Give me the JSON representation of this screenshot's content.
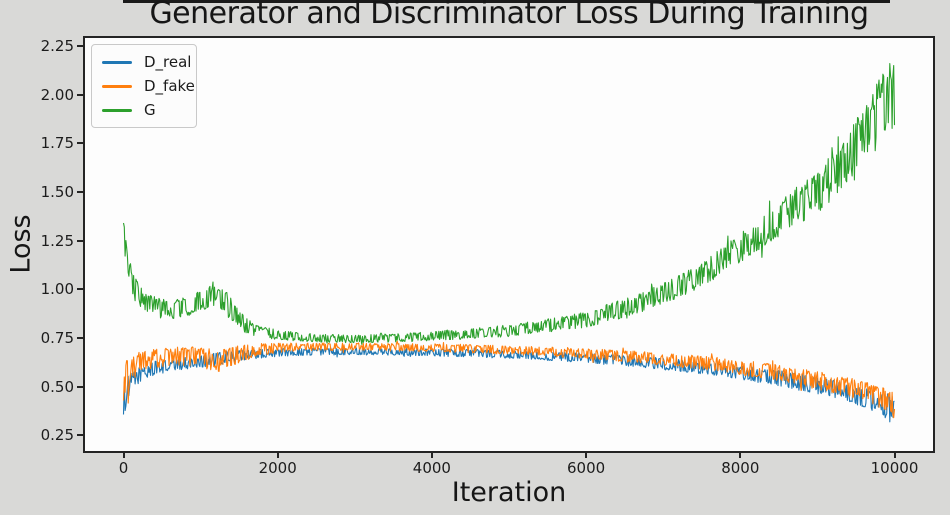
{
  "chart_data": {
    "type": "line",
    "title": "Generator and Discriminator Loss During Training",
    "xlabel": "Iteration",
    "ylabel": "Loss",
    "xlim": [
      -500,
      10500
    ],
    "ylim": [
      0.17,
      2.29
    ],
    "xticks": [
      0,
      2000,
      4000,
      6000,
      8000,
      10000
    ],
    "yticks": [
      0.25,
      0.5,
      0.75,
      1.0,
      1.25,
      1.5,
      1.75,
      2.0,
      2.25
    ],
    "grid": false,
    "legend_position": "upper left",
    "iteration_range": [
      0,
      10000
    ],
    "keypoints_format": "[iteration, loss_mean, noise_half_amplitude]",
    "series": [
      {
        "name": "D_real",
        "color": "#1f77b4",
        "keypoints": [
          [
            0,
            0.44,
            0.09
          ],
          [
            100,
            0.52,
            0.05
          ],
          [
            200,
            0.56,
            0.04
          ],
          [
            400,
            0.595,
            0.035
          ],
          [
            700,
            0.615,
            0.03
          ],
          [
            1000,
            0.63,
            0.03
          ],
          [
            1300,
            0.645,
            0.035
          ],
          [
            1600,
            0.665,
            0.025
          ],
          [
            2000,
            0.675,
            0.02
          ],
          [
            2500,
            0.68,
            0.018
          ],
          [
            3000,
            0.682,
            0.018
          ],
          [
            3500,
            0.68,
            0.018
          ],
          [
            4000,
            0.676,
            0.018
          ],
          [
            4500,
            0.672,
            0.02
          ],
          [
            5000,
            0.665,
            0.02
          ],
          [
            5500,
            0.657,
            0.022
          ],
          [
            6000,
            0.647,
            0.025
          ],
          [
            6500,
            0.633,
            0.027
          ],
          [
            7000,
            0.617,
            0.03
          ],
          [
            7500,
            0.597,
            0.032
          ],
          [
            8000,
            0.573,
            0.035
          ],
          [
            8500,
            0.543,
            0.04
          ],
          [
            9000,
            0.506,
            0.045
          ],
          [
            9500,
            0.458,
            0.05
          ],
          [
            9800,
            0.42,
            0.06
          ],
          [
            10000,
            0.375,
            0.075
          ]
        ]
      },
      {
        "name": "D_fake",
        "color": "#ff7f0e",
        "keypoints": [
          [
            0,
            0.5,
            0.13
          ],
          [
            100,
            0.585,
            0.06
          ],
          [
            200,
            0.625,
            0.055
          ],
          [
            400,
            0.645,
            0.05
          ],
          [
            700,
            0.655,
            0.05
          ],
          [
            1000,
            0.655,
            0.05
          ],
          [
            1200,
            0.63,
            0.06
          ],
          [
            1400,
            0.655,
            0.05
          ],
          [
            1700,
            0.685,
            0.035
          ],
          [
            2000,
            0.7,
            0.025
          ],
          [
            2500,
            0.705,
            0.02
          ],
          [
            3000,
            0.706,
            0.02
          ],
          [
            3500,
            0.703,
            0.02
          ],
          [
            4000,
            0.7,
            0.02
          ],
          [
            4500,
            0.695,
            0.022
          ],
          [
            5000,
            0.688,
            0.022
          ],
          [
            5500,
            0.68,
            0.025
          ],
          [
            6000,
            0.67,
            0.027
          ],
          [
            6500,
            0.657,
            0.03
          ],
          [
            7000,
            0.642,
            0.032
          ],
          [
            7500,
            0.623,
            0.035
          ],
          [
            8000,
            0.6,
            0.038
          ],
          [
            8500,
            0.57,
            0.042
          ],
          [
            9000,
            0.533,
            0.047
          ],
          [
            9500,
            0.487,
            0.052
          ],
          [
            9800,
            0.448,
            0.055
          ],
          [
            10000,
            0.41,
            0.06
          ]
        ]
      },
      {
        "name": "G",
        "color": "#2ca02c",
        "keypoints": [
          [
            0,
            1.26,
            0.1
          ],
          [
            60,
            1.1,
            0.07
          ],
          [
            150,
            1.0,
            0.06
          ],
          [
            300,
            0.93,
            0.05
          ],
          [
            500,
            0.9,
            0.05
          ],
          [
            700,
            0.9,
            0.05
          ],
          [
            900,
            0.92,
            0.05
          ],
          [
            1100,
            0.96,
            0.06
          ],
          [
            1200,
            0.98,
            0.07
          ],
          [
            1350,
            0.92,
            0.06
          ],
          [
            1500,
            0.84,
            0.05
          ],
          [
            1700,
            0.79,
            0.03
          ],
          [
            2000,
            0.765,
            0.025
          ],
          [
            2500,
            0.75,
            0.02
          ],
          [
            3000,
            0.745,
            0.02
          ],
          [
            3500,
            0.75,
            0.022
          ],
          [
            4000,
            0.76,
            0.025
          ],
          [
            4500,
            0.772,
            0.027
          ],
          [
            5000,
            0.788,
            0.03
          ],
          [
            5500,
            0.813,
            0.033
          ],
          [
            6000,
            0.845,
            0.04
          ],
          [
            6500,
            0.905,
            0.05
          ],
          [
            7000,
            0.975,
            0.055
          ],
          [
            7500,
            1.07,
            0.065
          ],
          [
            8000,
            1.21,
            0.075
          ],
          [
            8500,
            1.36,
            0.09
          ],
          [
            9000,
            1.5,
            0.11
          ],
          [
            9300,
            1.62,
            0.12
          ],
          [
            9600,
            1.8,
            0.14
          ],
          [
            9800,
            1.93,
            0.15
          ],
          [
            9950,
            2.02,
            0.17
          ],
          [
            10000,
            1.97,
            0.2
          ]
        ]
      }
    ]
  },
  "colors": {
    "figure_background": "#d9d9d7",
    "plot_background": "#fdfdfd",
    "spine": "#242424",
    "text": "#161616",
    "legend_border": "#c9c9c9"
  }
}
